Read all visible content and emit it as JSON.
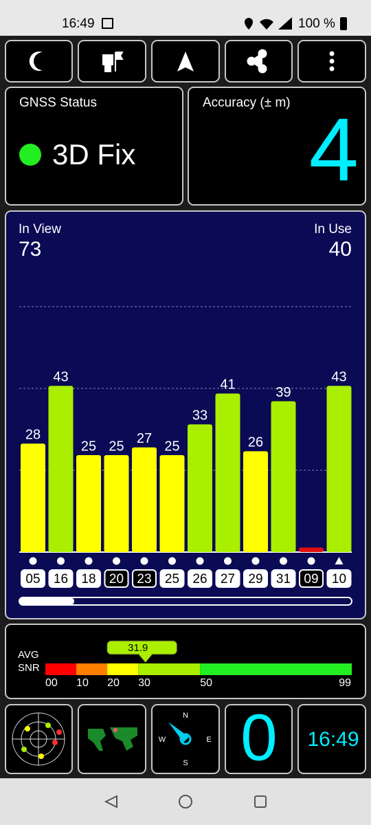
{
  "status_bar": {
    "time": "16:49",
    "battery": "100 %"
  },
  "gnss_status": {
    "title": "GNSS Status",
    "fix": "3D Fix"
  },
  "accuracy": {
    "title": "Accuracy (± m)",
    "value": 4
  },
  "chart_data": {
    "type": "bar",
    "in_view_label": "In View",
    "in_view": 73,
    "in_use_label": "In Use",
    "in_use": 40,
    "categories": [
      "05",
      "16",
      "18",
      "20",
      "23",
      "25",
      "26",
      "27",
      "29",
      "31",
      "09",
      "10"
    ],
    "values": [
      28,
      43,
      25,
      25,
      27,
      25,
      33,
      41,
      26,
      39,
      1,
      43
    ],
    "value_labels": [
      "28",
      "43",
      "25",
      "25",
      "27",
      "25",
      "33",
      "41",
      "26",
      "39",
      null,
      "43"
    ],
    "colors": [
      "#ffff00",
      "#aaee00",
      "#ffff00",
      "#ffff00",
      "#ffff00",
      "#ffff00",
      "#aaee00",
      "#aaee00",
      "#ffff00",
      "#aaee00",
      "#e01010",
      "#aaee00"
    ],
    "used": [
      true,
      true,
      true,
      false,
      false,
      true,
      true,
      true,
      true,
      true,
      false,
      true
    ],
    "ylim": [
      0,
      85
    ],
    "gridlines": [
      21.25,
      42.5,
      63.75
    ]
  },
  "snr": {
    "labels": [
      "AVG",
      "SNR"
    ],
    "avg": 31.9,
    "xlim": [
      0,
      99
    ],
    "ticks": [
      {
        "value": 0,
        "label": "00"
      },
      10,
      20,
      30,
      50,
      99
    ],
    "band_colors": [
      "#ff0000",
      "#ff8000",
      "#ffff00",
      "#aaee00",
      "#22ee22"
    ]
  },
  "tiles": {
    "compass": [
      "N",
      "E",
      "S",
      "W"
    ],
    "speed": 0,
    "clock": "16:49"
  }
}
